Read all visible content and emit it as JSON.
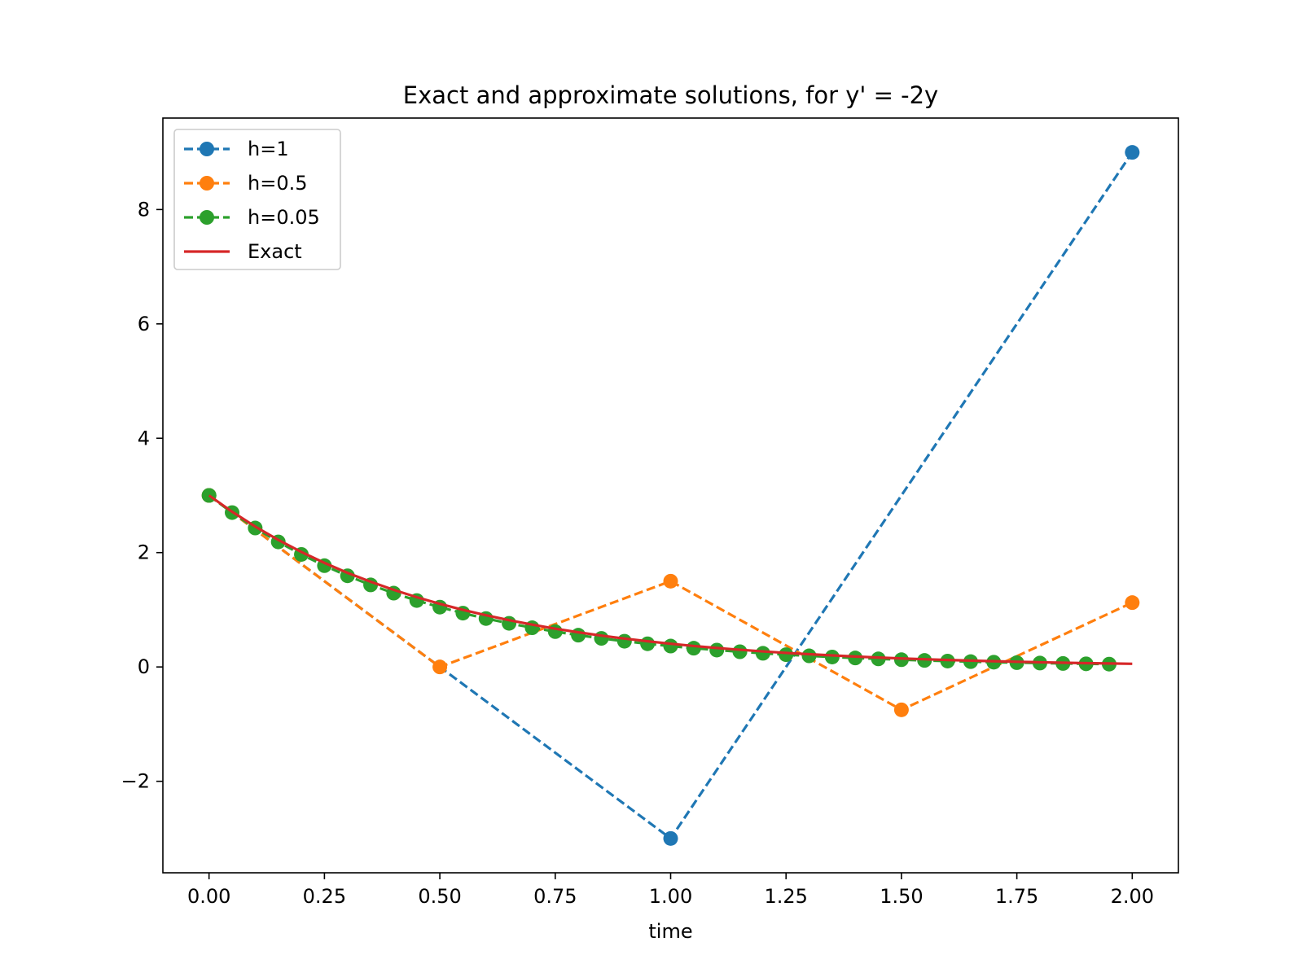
{
  "chart_data": {
    "type": "line",
    "title": "Exact and approximate solutions, for y' = -2y",
    "xlabel": "time",
    "ylabel": "",
    "xlim": [
      -0.1,
      2.1
    ],
    "ylim": [
      -3.6,
      9.6
    ],
    "xticks": [
      0,
      0.25,
      0.5,
      0.75,
      1.0,
      1.25,
      1.5,
      1.75,
      2.0
    ],
    "xtick_labels": [
      "0.00",
      "0.25",
      "0.50",
      "0.75",
      "1.00",
      "1.25",
      "1.50",
      "1.75",
      "2.00"
    ],
    "yticks": [
      -2,
      0,
      2,
      4,
      6,
      8
    ],
    "ytick_labels": [
      "−2",
      "0",
      "2",
      "4",
      "6",
      "8"
    ],
    "grid": false,
    "legend_position": "top-left",
    "series": [
      {
        "name": "h=1",
        "style": "dashed-marker",
        "color": "#1f77b4",
        "x": [
          0,
          1,
          2
        ],
        "y": [
          3,
          -3,
          9
        ]
      },
      {
        "name": "h=0.5",
        "style": "dashed-marker",
        "color": "#ff7f0e",
        "x": [
          0,
          0.5,
          1.0,
          1.5,
          2.0
        ],
        "y": [
          3,
          0,
          1.5,
          -0.75,
          1.125
        ]
      },
      {
        "name": "h=0.05",
        "style": "dashed-marker",
        "color": "#2ca02c",
        "x": [
          0,
          0.05,
          0.1,
          0.15,
          0.2,
          0.25,
          0.3,
          0.35,
          0.4,
          0.45,
          0.5,
          0.55,
          0.6,
          0.65,
          0.7,
          0.75,
          0.8,
          0.85,
          0.9,
          0.95,
          1.0,
          1.05,
          1.1,
          1.15,
          1.2,
          1.25,
          1.3,
          1.35,
          1.4,
          1.45,
          1.5,
          1.55,
          1.6,
          1.65,
          1.7,
          1.75,
          1.8,
          1.85,
          1.9,
          1.95
        ],
        "y": [
          3.0,
          2.7,
          2.43,
          2.187,
          1.968,
          1.771,
          1.594,
          1.435,
          1.291,
          1.162,
          1.046,
          0.941,
          0.847,
          0.763,
          0.686,
          0.618,
          0.556,
          0.5,
          0.45,
          0.405,
          0.365,
          0.328,
          0.295,
          0.266,
          0.239,
          0.215,
          0.194,
          0.174,
          0.157,
          0.141,
          0.127,
          0.114,
          0.103,
          0.093,
          0.083,
          0.075,
          0.068,
          0.061,
          0.055,
          0.049
        ]
      },
      {
        "name": "Exact",
        "style": "solid",
        "color": "#d62728",
        "x": [
          0,
          0.05,
          0.1,
          0.15,
          0.2,
          0.25,
          0.3,
          0.35,
          0.4,
          0.45,
          0.5,
          0.55,
          0.6,
          0.65,
          0.7,
          0.75,
          0.8,
          0.85,
          0.9,
          0.95,
          1.0,
          1.05,
          1.1,
          1.15,
          1.2,
          1.25,
          1.3,
          1.35,
          1.4,
          1.45,
          1.5,
          1.55,
          1.6,
          1.65,
          1.7,
          1.75,
          1.8,
          1.85,
          1.9,
          1.95,
          2.0
        ],
        "y": [
          3.0,
          2.715,
          2.456,
          2.222,
          2.011,
          1.82,
          1.646,
          1.49,
          1.348,
          1.22,
          1.104,
          0.999,
          0.904,
          0.818,
          0.74,
          0.669,
          0.606,
          0.548,
          0.496,
          0.449,
          0.406,
          0.367,
          0.332,
          0.301,
          0.272,
          0.246,
          0.223,
          0.202,
          0.182,
          0.165,
          0.149,
          0.135,
          0.122,
          0.111,
          0.1,
          0.091,
          0.082,
          0.074,
          0.067,
          0.061,
          0.055
        ]
      }
    ]
  }
}
